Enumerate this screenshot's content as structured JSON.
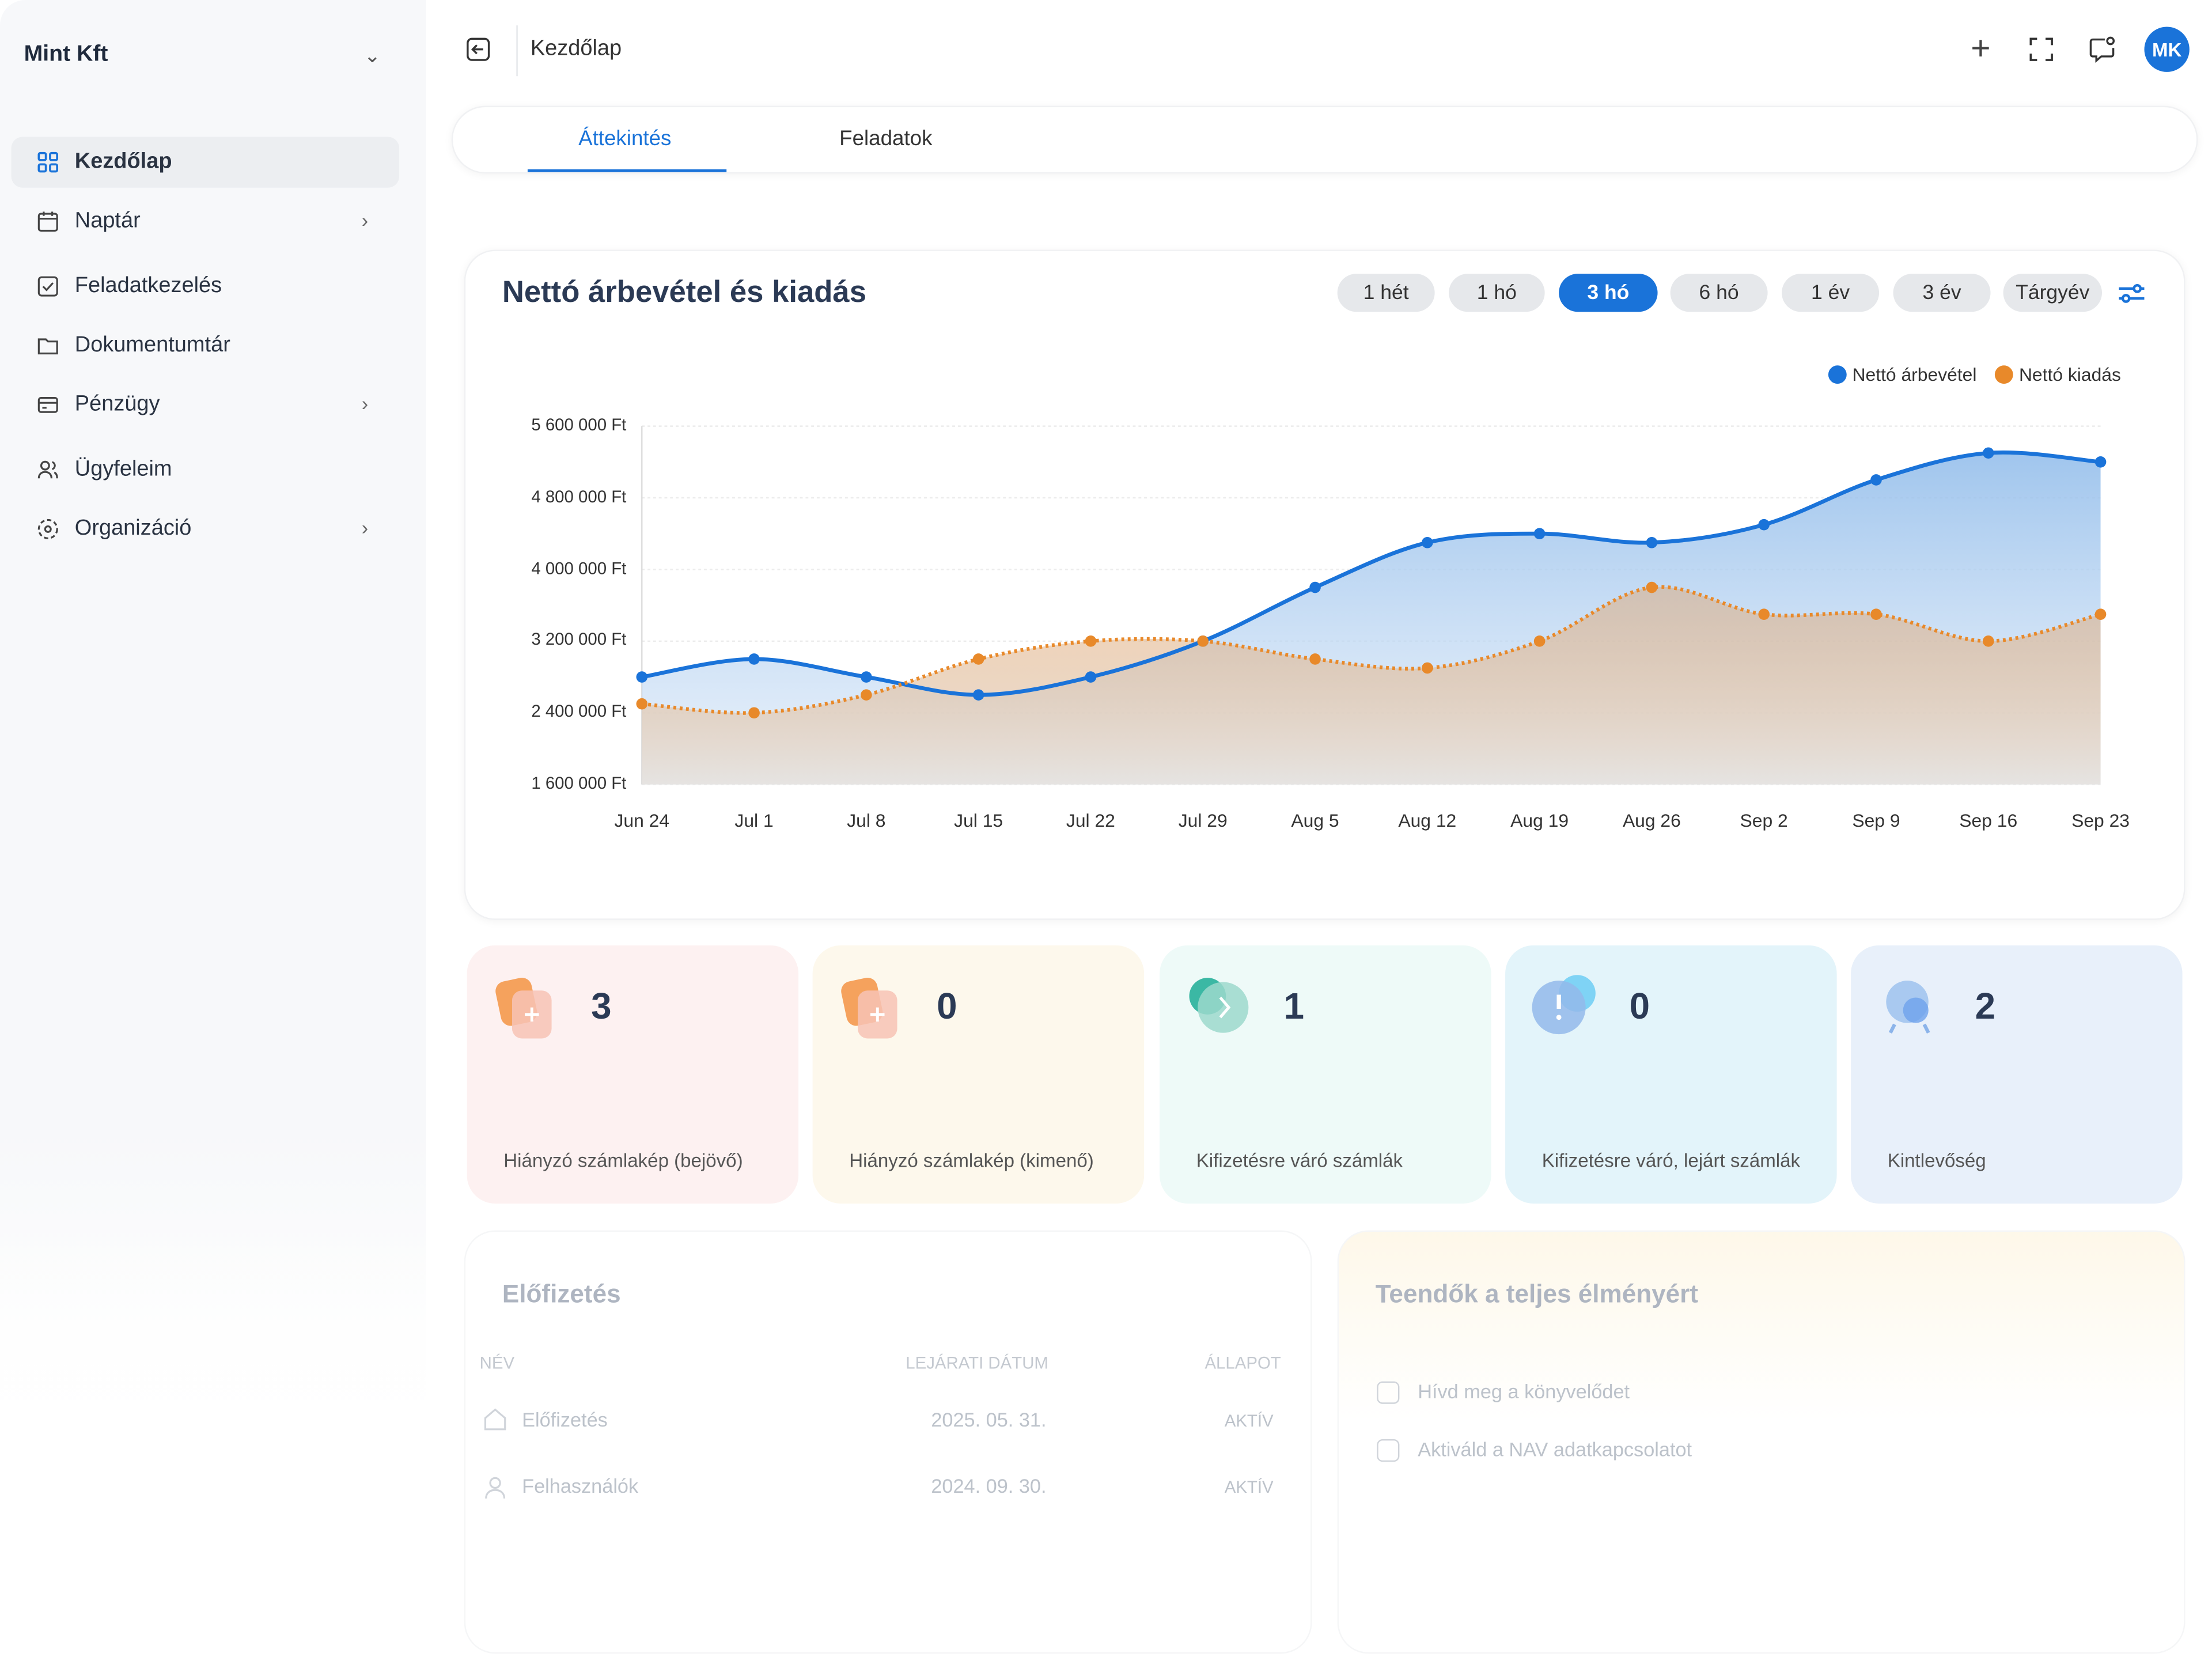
{
  "sidebar": {
    "org_name": "Mint Kft",
    "items": [
      {
        "label": "Kezdőlap",
        "icon": "grid-icon",
        "active": true
      },
      {
        "label": "Naptár",
        "icon": "calendar-icon",
        "has_submenu": true
      },
      {
        "label": "Feladatkezelés",
        "icon": "checkbox-icon"
      },
      {
        "label": "Dokumentumtár",
        "icon": "folder-icon"
      },
      {
        "label": "Pénzügy",
        "icon": "credit-card-icon",
        "has_submenu": true
      },
      {
        "label": "Ügyfeleim",
        "icon": "users-icon"
      },
      {
        "label": "Organizáció",
        "icon": "organization-icon",
        "has_submenu": true
      }
    ]
  },
  "header": {
    "breadcrumb": "Kezdőlap",
    "avatar_initials": "MK",
    "accent": "#1a73d9"
  },
  "tabs": [
    {
      "label": "Áttekintés",
      "active": true
    },
    {
      "label": "Feladatok"
    }
  ],
  "chart_card": {
    "title": "Nettó árbevétel és kiadás",
    "ranges": [
      "1 hét",
      "1 hó",
      "3 hó",
      "6 hó",
      "1 év",
      "3 év",
      "Tárgyév"
    ],
    "active_range": "3 hó"
  },
  "chart_data": {
    "type": "area",
    "categories": [
      "Jun 24",
      "Jul 1",
      "Jul 8",
      "Jul 15",
      "Jul 22",
      "Jul 29",
      "Aug 5",
      "Aug 12",
      "Aug 19",
      "Aug 26",
      "Sep 2",
      "Sep 9",
      "Sep 16",
      "Sep 23"
    ],
    "yticks": [
      "5 600 000 Ft",
      "4 800 000 Ft",
      "4 000 000 Ft",
      "3 200 000 Ft",
      "2 400 000 Ft",
      "1 600 000 Ft"
    ],
    "ylim": [
      1600000,
      5600000
    ],
    "legend_position": "top-right",
    "grid": true,
    "series": [
      {
        "name": "Nettó árbevétel",
        "color": "#1a73d9",
        "values": [
          2800000,
          3000000,
          2800000,
          2600000,
          2800000,
          3200000,
          3800000,
          4300000,
          4400000,
          4300000,
          4500000,
          5000000,
          5300000,
          5200000
        ]
      },
      {
        "name": "Nettó kiadás",
        "color": "#e8892a",
        "values": [
          2500000,
          2400000,
          2600000,
          3000000,
          3200000,
          3200000,
          3000000,
          2900000,
          3200000,
          3800000,
          3500000,
          3500000,
          3200000,
          3500000
        ]
      }
    ]
  },
  "stats": [
    {
      "value": "3",
      "label": "Hiányzó számlakép (bejövő)",
      "bg": "#fdf1f1"
    },
    {
      "value": "0",
      "label": "Hiányzó számlakép (kimenő)",
      "bg": "#fdf8ec"
    },
    {
      "value": "1",
      "label": "Kifizetésre váró számlák",
      "bg": "#eefaf8"
    },
    {
      "value": "0",
      "label": "Kifizetésre váró, lejárt számlák",
      "bg": "#e3f4fa"
    },
    {
      "value": "2",
      "label": "Kintlevőség",
      "bg": "#e8f0fa"
    }
  ],
  "subscription": {
    "title": "Előfizetés",
    "columns": [
      "NÉV",
      "LEJÁRATI DÁTUM",
      "ÁLLAPOT"
    ],
    "rows": [
      {
        "name": "Előfizetés",
        "date": "2025. 05. 31.",
        "status": "AKTÍV"
      },
      {
        "name": "Felhasználók",
        "date": "2024. 09. 30.",
        "status": "AKTÍV"
      }
    ]
  },
  "todos": {
    "title": "Teendők a teljes élményért",
    "items": [
      "Hívd meg a könyvelődet",
      "Aktiváld a NAV adatkapcsolatot"
    ]
  }
}
